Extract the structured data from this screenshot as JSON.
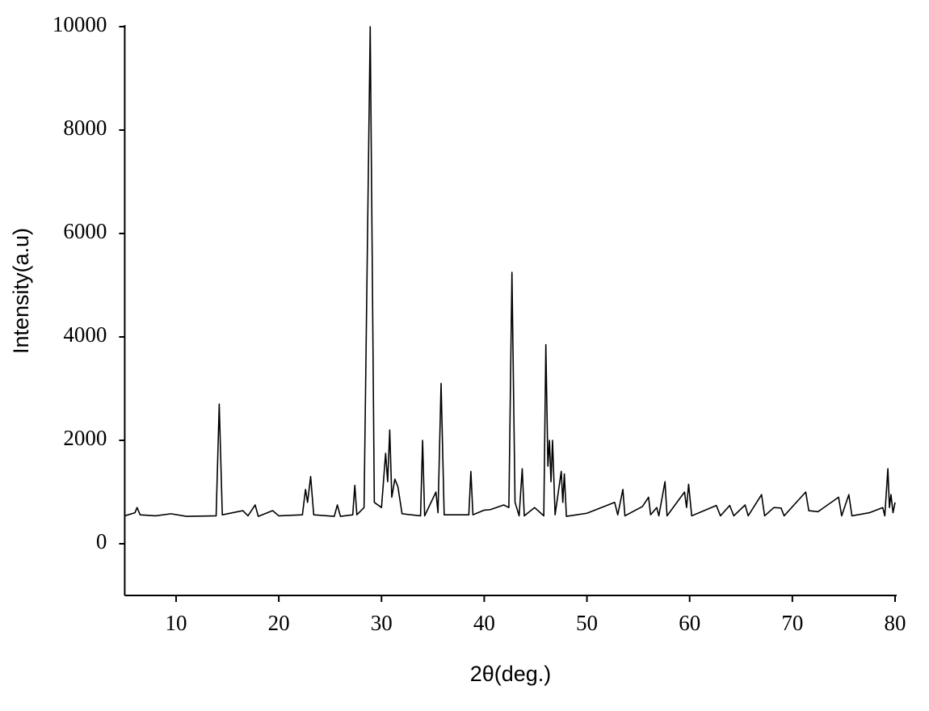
{
  "chart_data": {
    "type": "line",
    "xlabel": "2θ(deg.)",
    "ylabel": "Intensity(a.u)",
    "xlim": [
      5,
      80
    ],
    "ylim": [
      -1000,
      10000
    ],
    "xticks": [
      10,
      20,
      30,
      40,
      50,
      60,
      70,
      80
    ],
    "yticks": [
      0,
      2000,
      4000,
      6000,
      8000,
      10000
    ],
    "x": [
      5,
      6,
      6.2,
      6.5,
      8,
      9.5,
      11,
      13.9,
      14.2,
      14.5,
      16.5,
      17,
      17.7,
      18,
      19.4,
      20,
      22.3,
      22.6,
      22.8,
      23.1,
      23.4,
      25.4,
      25.7,
      26,
      27.2,
      27.4,
      27.6,
      28.3,
      28.9,
      29.3,
      30,
      30.4,
      30.6,
      30.8,
      31,
      31.3,
      31.6,
      32,
      33.8,
      34,
      34.2,
      35.3,
      35.5,
      35.8,
      36.1,
      38.5,
      38.7,
      38.9,
      40,
      40.6,
      41.9,
      42.4,
      42.7,
      43,
      43.4,
      43.7,
      43.9,
      44.9,
      45.8,
      46,
      46.2,
      46.35,
      46.5,
      46.65,
      46.9,
      47.5,
      47.65,
      47.8,
      48,
      50,
      52.7,
      53,
      53.5,
      53.7,
      55.4,
      56,
      56.2,
      56.8,
      57,
      57.6,
      57.8,
      59.5,
      59.7,
      59.9,
      60.2,
      62.6,
      63,
      63.9,
      64.3,
      65.4,
      65.7,
      67,
      67.3,
      68.2,
      68.9,
      69.2,
      71.3,
      71.6,
      72.5,
      74.5,
      74.8,
      75.5,
      75.8,
      77.5,
      78.8,
      79,
      79.3,
      79.45,
      79.6,
      79.8,
      80
    ],
    "series": [
      {
        "color": "#000000",
        "values": [
          540,
          600,
          700,
          560,
          540,
          580,
          530,
          540,
          2700,
          560,
          640,
          540,
          750,
          530,
          640,
          540,
          560,
          1050,
          800,
          1300,
          560,
          530,
          750,
          530,
          560,
          1130,
          560,
          700,
          10000,
          800,
          700,
          1750,
          1200,
          2200,
          900,
          1250,
          1100,
          580,
          540,
          2000,
          540,
          1000,
          600,
          3100,
          560,
          560,
          1400,
          560,
          650,
          660,
          750,
          700,
          5250,
          800,
          540,
          1450,
          540,
          700,
          540,
          3850,
          1500,
          2000,
          1200,
          2000,
          560,
          1400,
          800,
          1350,
          530,
          590,
          800,
          560,
          1050,
          540,
          720,
          900,
          560,
          700,
          540,
          1200,
          540,
          1000,
          700,
          1150,
          540,
          740,
          540,
          740,
          540,
          750,
          540,
          950,
          540,
          700,
          690,
          540,
          1000,
          640,
          620,
          900,
          540,
          950,
          540,
          600,
          700,
          540,
          1450,
          700,
          950,
          600,
          800
        ]
      }
    ]
  }
}
